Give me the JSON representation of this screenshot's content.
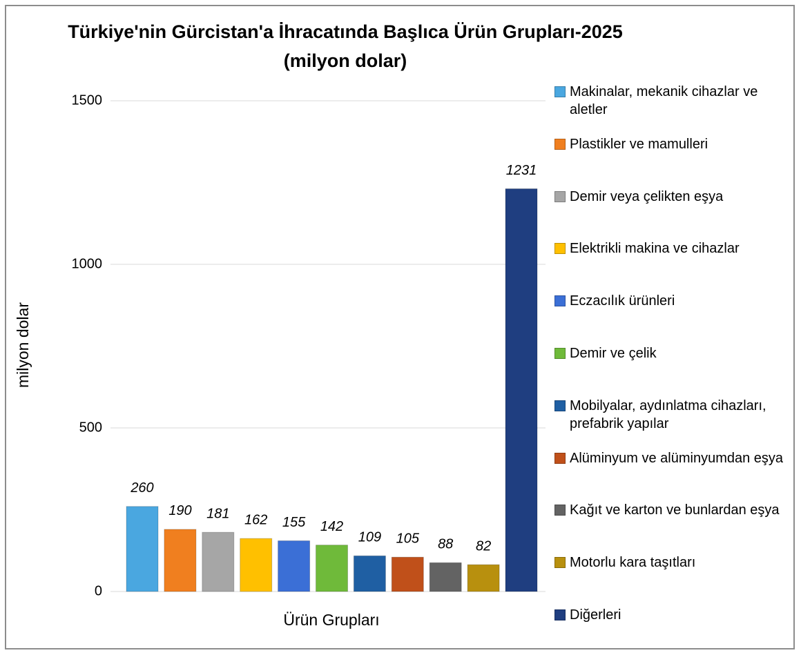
{
  "chart_data": {
    "type": "bar",
    "title": "Türkiye'nin Gürcistan'a İhracatında Başlıca Ürün Grupları-2025",
    "subtitle": "(milyon dolar)",
    "x_label": "Ürün Grupları",
    "y_label": "milyon dolar",
    "categories": [
      "Makinalar, mekanik cihazlar ve aletler",
      "Plastikler ve mamulleri",
      "Demir veya çelikten eşya",
      "Elektrikli makina ve cihazlar",
      "Eczacılık ürünleri",
      "Demir ve çelik",
      "Mobilyalar, aydınlatma cihazları, prefabrik yapılar",
      "Alüminyum ve alüminyumdan eşya",
      "Kağıt ve karton ve bunlardan eşya",
      "Motorlu kara taşıtları",
      "Diğerleri"
    ],
    "values": [
      260,
      190,
      181,
      162,
      155,
      142,
      109,
      105,
      88,
      82,
      1231
    ],
    "colors": [
      "#4aa7e0",
      "#f07f1f",
      "#a6a6a6",
      "#ffc000",
      "#3b6fd6",
      "#6fba3a",
      "#1f5fa3",
      "#c0501a",
      "#636363",
      "#b8900e",
      "#1f3e80"
    ],
    "ylim": [
      0,
      1500
    ],
    "yticks": [
      0,
      500,
      1000,
      1500
    ],
    "grid": true,
    "legend": "right"
  }
}
